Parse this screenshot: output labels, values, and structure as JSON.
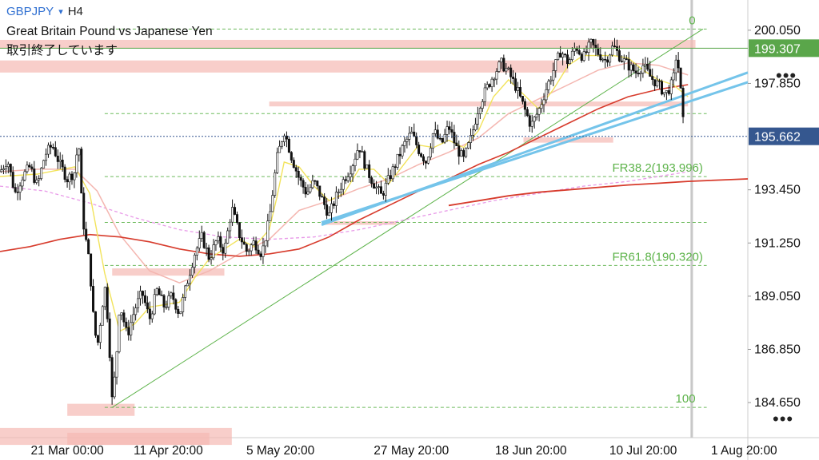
{
  "header": {
    "symbol": "GBPJPY",
    "caret": "▾",
    "timeframe": "H4",
    "description": "Great Britain Pound vs Japanese Yen",
    "status": "取引終了しています"
  },
  "menu_icon": "•••",
  "colors": {
    "bull_candle": "#ffffff",
    "bear_candle": "#111111",
    "ma_fast": "#f2e35b",
    "ma_mid": "#f4b6b0",
    "ma_slow": "#d73b2c",
    "ma_long": "#e89ae8",
    "trendline": "#74c4ea",
    "fib_lines": "#5db34a",
    "zones": "#f5b9b4",
    "last_price_bg": "#35578f",
    "upper_price_bg": "#5aa64a"
  },
  "chart_data": {
    "type": "candlestick",
    "symbol": "GBPJPY",
    "timeframe": "H4",
    "y_ticks": [
      200.05,
      197.85,
      195.662,
      193.45,
      191.25,
      189.05,
      186.85,
      184.65
    ],
    "y_tick_labels": [
      "200.050",
      "197.850",
      "195.662",
      "193.450",
      "191.250",
      "189.050",
      "186.850",
      "184.650"
    ],
    "ylim": [
      183.2,
      201.3
    ],
    "x_labels": [
      "21 Mar 00:00",
      "11 Apr 20:00",
      "5 May 20:00",
      "27 May 20:00",
      "18 Jun 20:00",
      "10 Jul 20:00",
      "1 Aug 20:00"
    ],
    "price_labels": {
      "last": {
        "value": 195.662,
        "text": "195.662"
      },
      "upper": {
        "value": 199.307,
        "text": "199.307"
      }
    },
    "fib_levels": [
      {
        "label": "0",
        "value": 200.1
      },
      {
        "label": "",
        "value": 196.6
      },
      {
        "label": "FR38.2(193.996)",
        "value": 193.996
      },
      {
        "label": "",
        "value": 192.1
      },
      {
        "label": "FR61.8(190.320)",
        "value": 190.32
      },
      {
        "label": "100",
        "value": 184.45
      }
    ],
    "zones": [
      {
        "from": 0.0,
        "to": 0.93,
        "low": 199.3,
        "high": 199.65
      },
      {
        "from": 0.0,
        "to": 0.76,
        "low": 198.3,
        "high": 198.8
      },
      {
        "from": 0.36,
        "to": 0.92,
        "low": 196.9,
        "high": 197.1
      },
      {
        "from": 0.7,
        "to": 0.82,
        "low": 195.4,
        "high": 195.62
      },
      {
        "from": 0.43,
        "to": 0.53,
        "low": 192.0,
        "high": 192.15
      },
      {
        "from": 0.15,
        "to": 0.3,
        "low": 189.9,
        "high": 190.2
      },
      {
        "from": 0.09,
        "to": 0.18,
        "low": 184.1,
        "high": 184.6
      },
      {
        "from": 0.0,
        "to": 0.31,
        "low": 182.9,
        "high": 183.6
      },
      {
        "from": 0.09,
        "to": 0.28,
        "low": 182.9,
        "high": 183.4
      }
    ],
    "close_path": [
      [
        0.0,
        194.2
      ],
      [
        0.01,
        194.7
      ],
      [
        0.02,
        193.3
      ],
      [
        0.03,
        194.0
      ],
      [
        0.04,
        194.4
      ],
      [
        0.05,
        193.6
      ],
      [
        0.06,
        194.9
      ],
      [
        0.07,
        195.3
      ],
      [
        0.08,
        194.5
      ],
      [
        0.09,
        193.9
      ],
      [
        0.1,
        194.2
      ],
      [
        0.105,
        195.6
      ],
      [
        0.11,
        192.4
      ],
      [
        0.12,
        190.3
      ],
      [
        0.125,
        188.1
      ],
      [
        0.13,
        186.9
      ],
      [
        0.14,
        189.5
      ],
      [
        0.145,
        187.8
      ],
      [
        0.15,
        184.7
      ],
      [
        0.155,
        186.2
      ],
      [
        0.16,
        188.8
      ],
      [
        0.17,
        187.4
      ],
      [
        0.18,
        188.5
      ],
      [
        0.19,
        189.2
      ],
      [
        0.2,
        188.1
      ],
      [
        0.21,
        189.3
      ],
      [
        0.22,
        188.6
      ],
      [
        0.23,
        189.1
      ],
      [
        0.24,
        188.3
      ],
      [
        0.25,
        189.6
      ],
      [
        0.26,
        190.8
      ],
      [
        0.27,
        191.5
      ],
      [
        0.28,
        190.6
      ],
      [
        0.29,
        191.4
      ],
      [
        0.3,
        190.9
      ],
      [
        0.31,
        192.7
      ],
      [
        0.32,
        191.6
      ],
      [
        0.33,
        190.9
      ],
      [
        0.34,
        191.3
      ],
      [
        0.35,
        190.8
      ],
      [
        0.36,
        192.2
      ],
      [
        0.37,
        194.7
      ],
      [
        0.38,
        195.9
      ],
      [
        0.39,
        194.8
      ],
      [
        0.4,
        193.9
      ],
      [
        0.41,
        193.3
      ],
      [
        0.42,
        193.8
      ],
      [
        0.43,
        193.1
      ],
      [
        0.44,
        192.4
      ],
      [
        0.45,
        193.2
      ],
      [
        0.46,
        193.9
      ],
      [
        0.47,
        194.4
      ],
      [
        0.48,
        195.3
      ],
      [
        0.49,
        194.3
      ],
      [
        0.5,
        193.7
      ],
      [
        0.51,
        193.2
      ],
      [
        0.52,
        193.9
      ],
      [
        0.53,
        194.6
      ],
      [
        0.54,
        195.3
      ],
      [
        0.55,
        195.8
      ],
      [
        0.56,
        195.1
      ],
      [
        0.57,
        194.6
      ],
      [
        0.58,
        195.9
      ],
      [
        0.59,
        195.3
      ],
      [
        0.6,
        196.1
      ],
      [
        0.61,
        195.2
      ],
      [
        0.62,
        194.7
      ],
      [
        0.63,
        195.6
      ],
      [
        0.64,
        196.9
      ],
      [
        0.65,
        197.6
      ],
      [
        0.66,
        198.2
      ],
      [
        0.67,
        198.7
      ],
      [
        0.68,
        198.3
      ],
      [
        0.69,
        197.7
      ],
      [
        0.7,
        196.9
      ],
      [
        0.71,
        196.1
      ],
      [
        0.72,
        196.7
      ],
      [
        0.73,
        197.6
      ],
      [
        0.74,
        198.4
      ],
      [
        0.75,
        199.2
      ],
      [
        0.76,
        198.7
      ],
      [
        0.77,
        199.4
      ],
      [
        0.78,
        198.9
      ],
      [
        0.79,
        199.5
      ],
      [
        0.8,
        199.1
      ],
      [
        0.81,
        198.8
      ],
      [
        0.82,
        199.4
      ],
      [
        0.83,
        198.9
      ],
      [
        0.84,
        198.6
      ],
      [
        0.85,
        198.3
      ],
      [
        0.86,
        198.6
      ],
      [
        0.87,
        198.1
      ],
      [
        0.88,
        197.8
      ],
      [
        0.89,
        197.4
      ],
      [
        0.9,
        197.9
      ],
      [
        0.905,
        199.2
      ],
      [
        0.91,
        197.6
      ],
      [
        0.915,
        195.66
      ]
    ],
    "ma_fast": [
      [
        0.0,
        194.0
      ],
      [
        0.05,
        194.1
      ],
      [
        0.1,
        194.4
      ],
      [
        0.12,
        193.3
      ],
      [
        0.14,
        190.0
      ],
      [
        0.16,
        187.6
      ],
      [
        0.18,
        187.9
      ],
      [
        0.2,
        188.6
      ],
      [
        0.22,
        188.7
      ],
      [
        0.24,
        188.8
      ],
      [
        0.26,
        189.8
      ],
      [
        0.28,
        190.6
      ],
      [
        0.3,
        191.0
      ],
      [
        0.32,
        191.4
      ],
      [
        0.34,
        191.1
      ],
      [
        0.36,
        191.8
      ],
      [
        0.37,
        193.1
      ],
      [
        0.38,
        194.6
      ],
      [
        0.4,
        194.4
      ],
      [
        0.42,
        193.6
      ],
      [
        0.44,
        193.0
      ],
      [
        0.46,
        193.3
      ],
      [
        0.48,
        194.3
      ],
      [
        0.5,
        194.3
      ],
      [
        0.52,
        193.7
      ],
      [
        0.54,
        194.5
      ],
      [
        0.56,
        195.3
      ],
      [
        0.58,
        195.2
      ],
      [
        0.6,
        195.5
      ],
      [
        0.62,
        195.2
      ],
      [
        0.64,
        195.9
      ],
      [
        0.66,
        197.3
      ],
      [
        0.68,
        198.0
      ],
      [
        0.7,
        197.4
      ],
      [
        0.72,
        196.8
      ],
      [
        0.74,
        197.6
      ],
      [
        0.76,
        198.6
      ],
      [
        0.78,
        199.0
      ],
      [
        0.8,
        199.0
      ],
      [
        0.82,
        199.0
      ],
      [
        0.84,
        198.9
      ],
      [
        0.86,
        198.4
      ],
      [
        0.88,
        198.0
      ],
      [
        0.9,
        197.8
      ],
      [
        0.92,
        197.3
      ]
    ],
    "ma_mid": [
      [
        0.0,
        194.2
      ],
      [
        0.05,
        194.3
      ],
      [
        0.1,
        194.3
      ],
      [
        0.13,
        193.4
      ],
      [
        0.16,
        191.6
      ],
      [
        0.2,
        190.1
      ],
      [
        0.24,
        189.6
      ],
      [
        0.28,
        190.1
      ],
      [
        0.32,
        190.8
      ],
      [
        0.36,
        191.4
      ],
      [
        0.4,
        192.6
      ],
      [
        0.44,
        193.0
      ],
      [
        0.48,
        193.5
      ],
      [
        0.52,
        193.9
      ],
      [
        0.56,
        194.5
      ],
      [
        0.6,
        195.0
      ],
      [
        0.64,
        195.6
      ],
      [
        0.68,
        196.6
      ],
      [
        0.72,
        197.2
      ],
      [
        0.76,
        197.8
      ],
      [
        0.8,
        198.4
      ],
      [
        0.84,
        198.7
      ],
      [
        0.88,
        198.6
      ],
      [
        0.92,
        198.2
      ]
    ],
    "ma_slow": [
      [
        0.0,
        190.9
      ],
      [
        0.04,
        191.1
      ],
      [
        0.08,
        191.4
      ],
      [
        0.12,
        191.6
      ],
      [
        0.16,
        191.5
      ],
      [
        0.2,
        191.3
      ],
      [
        0.24,
        191.0
      ],
      [
        0.28,
        190.8
      ],
      [
        0.32,
        190.7
      ],
      [
        0.36,
        190.8
      ],
      [
        0.4,
        191.0
      ],
      [
        0.44,
        191.5
      ],
      [
        0.48,
        192.2
      ],
      [
        0.52,
        192.8
      ],
      [
        0.56,
        193.4
      ],
      [
        0.6,
        193.9
      ],
      [
        0.64,
        194.5
      ],
      [
        0.68,
        195.0
      ],
      [
        0.72,
        195.6
      ],
      [
        0.76,
        196.2
      ],
      [
        0.8,
        196.8
      ],
      [
        0.84,
        197.3
      ],
      [
        0.88,
        197.6
      ],
      [
        0.92,
        197.8
      ]
    ],
    "ma_long": [
      [
        0.0,
        193.6
      ],
      [
        0.06,
        193.4
      ],
      [
        0.12,
        192.9
      ],
      [
        0.18,
        192.3
      ],
      [
        0.24,
        191.8
      ],
      [
        0.3,
        191.5
      ],
      [
        0.36,
        191.4
      ],
      [
        0.42,
        191.5
      ],
      [
        0.48,
        191.8
      ],
      [
        0.54,
        192.2
      ],
      [
        0.6,
        192.6
      ],
      [
        0.66,
        193.0
      ],
      [
        0.72,
        193.3
      ],
      [
        0.78,
        193.6
      ],
      [
        0.84,
        193.8
      ],
      [
        0.92,
        194.2
      ]
    ],
    "ma_200": [
      [
        0.6,
        192.8
      ],
      [
        0.64,
        193.0
      ],
      [
        0.68,
        193.2
      ],
      [
        0.72,
        193.35
      ],
      [
        0.76,
        193.45
      ],
      [
        0.8,
        193.55
      ],
      [
        0.84,
        193.65
      ],
      [
        0.88,
        193.72
      ],
      [
        0.92,
        193.8
      ],
      [
        1.0,
        193.9
      ]
    ],
    "trendlines": [
      {
        "from": [
          0.43,
          192.1
        ],
        "to": [
          1.0,
          197.9
        ]
      },
      {
        "from": [
          0.43,
          192.0
        ],
        "to": [
          1.0,
          198.3
        ]
      }
    ],
    "fib_diagonal": {
      "from": [
        0.15,
        184.45
      ],
      "to": [
        0.94,
        200.1
      ]
    },
    "vertical_marker_x": 0.925
  }
}
